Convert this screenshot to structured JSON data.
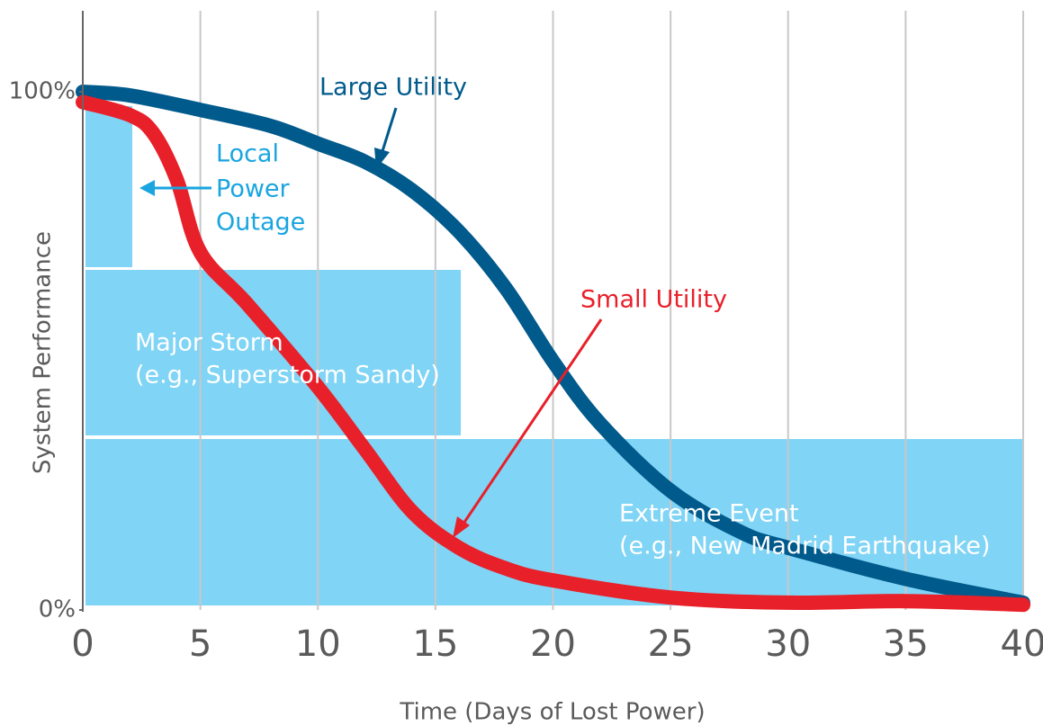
{
  "chart_data": {
    "type": "line",
    "x_label": "Time (Days of Lost Power)",
    "y_label": "System Performance",
    "xlim": [
      0,
      40
    ],
    "ylim": [
      0,
      100
    ],
    "xticks": [
      0,
      5,
      10,
      15,
      20,
      25,
      30,
      35,
      40
    ],
    "yticks": [
      {
        "value": 0,
        "label": "0%"
      },
      {
        "value": 100,
        "label": "100%"
      }
    ],
    "grid": true,
    "series": [
      {
        "name": "Large Utility",
        "color": "#005a8c",
        "x": [
          0,
          2,
          5,
          8,
          10,
          12,
          14,
          16,
          18,
          20,
          22,
          25,
          28,
          30,
          35,
          40
        ],
        "values": [
          100,
          99.3,
          96.5,
          93.4,
          90,
          86.5,
          81,
          73,
          62,
          48,
          36,
          23,
          15,
          12,
          6,
          1.4
        ]
      },
      {
        "name": "Small Utility",
        "color": "#e8202a",
        "x": [
          0,
          2,
          3,
          4,
          5,
          7,
          10,
          12,
          14,
          16,
          18,
          20,
          25,
          30,
          35,
          40
        ],
        "values": [
          98,
          95.5,
          92,
          83,
          69,
          59,
          43,
          31,
          19,
          12,
          8,
          5.7,
          2.4,
          1.4,
          1.7,
          1
        ]
      }
    ],
    "annotations": {
      "local": [
        "Local",
        "Power",
        "Outage"
      ],
      "storm": [
        "Major Storm",
        "(e.g., Superstorm Sandy)"
      ],
      "extreme": [
        "Extreme Event",
        "(e.g., New Madrid Earthquake)"
      ]
    }
  }
}
